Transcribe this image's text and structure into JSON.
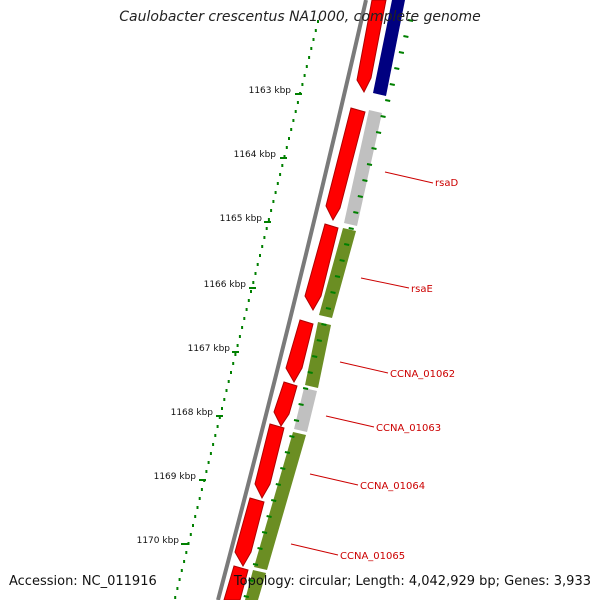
{
  "header": {
    "title": "Caulobacter crescentus NA1000, complete genome"
  },
  "footer": {
    "accession": "Accession: NC_011916",
    "topology": "Topology: circular; Length: 4,042,929 bp; Genes: 3,933"
  },
  "colors": {
    "cds_red": "#ff0000",
    "cds_dark_red": "#b00000",
    "blue": "#000080",
    "gray": "#c0c0c0",
    "olive": "#6b8e23",
    "tick_green": "#008000",
    "backbone": "#777777"
  },
  "ruler": {
    "ticks": [
      {
        "label": "1163 kbp"
      },
      {
        "label": "1164 kbp"
      },
      {
        "label": "1165 kbp"
      },
      {
        "label": "1166 kbp"
      },
      {
        "label": "1167 kbp"
      },
      {
        "label": "1168 kbp"
      },
      {
        "label": "1169 kbp"
      },
      {
        "label": "1170 kbp"
      }
    ]
  },
  "genes": [
    {
      "label": "rsaD"
    },
    {
      "label": "rsaE"
    },
    {
      "label": "CCNA_01062"
    },
    {
      "label": "CCNA_01063"
    },
    {
      "label": "CCNA_01064"
    },
    {
      "label": "CCNA_01065"
    }
  ]
}
